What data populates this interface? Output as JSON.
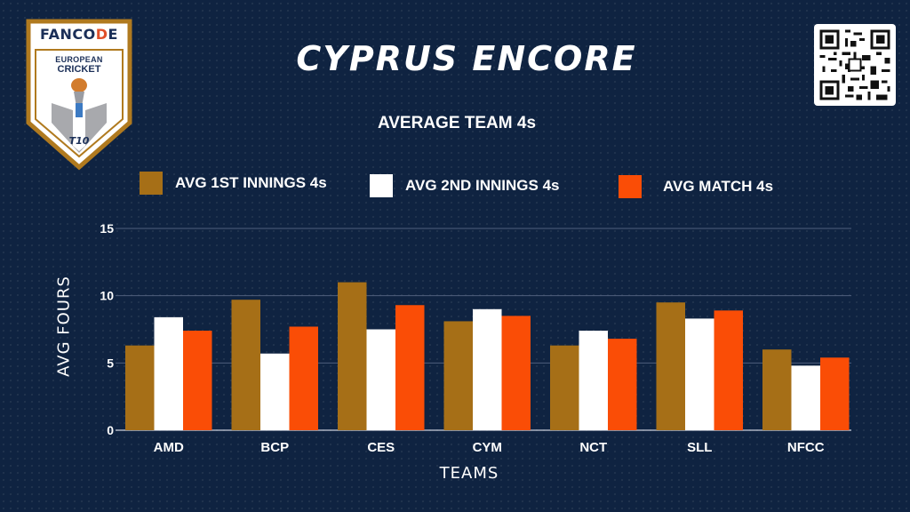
{
  "logo": {
    "brand_pre": "FANCO",
    "brand_hl": "D",
    "brand_post": "E",
    "line1": "EUROPEAN",
    "line2": "CRICKET",
    "badge": "T10"
  },
  "colors": {
    "background": "#0f2341",
    "series1": "#a66f17",
    "series2": "#ffffff",
    "series3": "#fa4d06"
  },
  "chart_data": {
    "type": "bar",
    "title": "CYPRUS ENCORE",
    "subtitle": "AVERAGE TEAM 4s",
    "xlabel": "TEAMS",
    "ylabel": "AVG FOURS",
    "ylim": [
      0,
      15
    ],
    "yticks": [
      0,
      5,
      10,
      15
    ],
    "grid": true,
    "legend_position": "top",
    "categories": [
      "AMD",
      "BCP",
      "CES",
      "CYM",
      "NCT",
      "SLL",
      "NFCC"
    ],
    "series": [
      {
        "name": "AVG 1ST INNINGS 4s",
        "color": "#a66f17",
        "values": [
          6.3,
          9.7,
          11.0,
          8.1,
          6.3,
          9.5,
          6.0
        ]
      },
      {
        "name": "AVG 2ND INNINGS 4s",
        "color": "#ffffff",
        "values": [
          8.4,
          5.7,
          7.5,
          9.0,
          7.4,
          8.3,
          4.8
        ]
      },
      {
        "name": "AVG MATCH 4s",
        "color": "#fa4d06",
        "values": [
          7.4,
          7.7,
          9.3,
          8.5,
          6.8,
          8.9,
          5.4
        ]
      }
    ]
  }
}
